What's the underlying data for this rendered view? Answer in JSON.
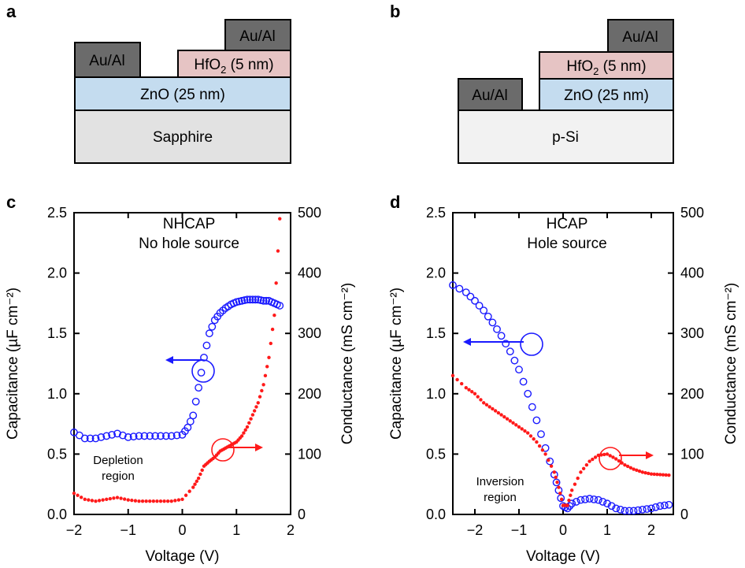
{
  "panels": {
    "a": {
      "letter": "a",
      "contact": "Au/Al",
      "contact2": "Au/Al",
      "dielectric": "HfO",
      "dielectric_sub": "2",
      "dielectric_rest": " (5 nm)",
      "channel": "ZnO (25 nm)",
      "substrate": "Sapphire"
    },
    "b": {
      "letter": "b",
      "contact": "Au/Al",
      "contact2": "Au/Al",
      "dielectric": "HfO",
      "dielectric_sub": "2",
      "dielectric_rest": " (5 nm)",
      "channel": "ZnO (25 nm)",
      "substrate": "p-Si"
    }
  },
  "colors": {
    "capacitance": "#1a1aff",
    "conductance": "#ff1a1a",
    "contact": "#6b6b6b",
    "hfo2": "#e6c4c4",
    "zno": "#c4dcef",
    "sapphire": "#e2e2e2",
    "psi": "#f2f2f2"
  },
  "chart_data": [
    {
      "panel": "c",
      "type": "scatter",
      "title": "NHCAP",
      "subtitle": "No hole source",
      "xlabel": "Voltage (V)",
      "ylabel": "Capacitance (µF cm⁻²)",
      "y2label": "Conductance (mS cm⁻²)",
      "xlim": [
        -2,
        2
      ],
      "ylim": [
        0,
        2.5
      ],
      "y2lim": [
        0,
        500
      ],
      "xticks": [
        "−2",
        "−1",
        "0",
        "1",
        "2"
      ],
      "yticks": [
        "0.0",
        "0.5",
        "1.0",
        "1.5",
        "2.0",
        "2.5"
      ],
      "y2ticks": [
        "0",
        "100",
        "200",
        "300",
        "400",
        "500"
      ],
      "annotation": [
        "Depletion",
        "region"
      ],
      "series": [
        {
          "name": "Capacitance",
          "axis": "left",
          "marker": "open-circle",
          "points": [
            [
              -2,
              0.68
            ],
            [
              -1.8,
              0.63
            ],
            [
              -1.6,
              0.63
            ],
            [
              -1.4,
              0.65
            ],
            [
              -1.2,
              0.67
            ],
            [
              -1.0,
              0.64
            ],
            [
              -0.8,
              0.65
            ],
            [
              -0.6,
              0.65
            ],
            [
              -0.4,
              0.65
            ],
            [
              -0.2,
              0.65
            ],
            [
              0,
              0.66
            ],
            [
              0.1,
              0.72
            ],
            [
              0.2,
              0.82
            ],
            [
              0.3,
              1.05
            ],
            [
              0.4,
              1.3
            ],
            [
              0.5,
              1.5
            ],
            [
              0.6,
              1.61
            ],
            [
              0.7,
              1.67
            ],
            [
              0.8,
              1.71
            ],
            [
              0.9,
              1.74
            ],
            [
              1.0,
              1.76
            ],
            [
              1.1,
              1.77
            ],
            [
              1.2,
              1.78
            ],
            [
              1.3,
              1.78
            ],
            [
              1.4,
              1.78
            ],
            [
              1.5,
              1.77
            ],
            [
              1.6,
              1.77
            ],
            [
              1.7,
              1.75
            ],
            [
              1.8,
              1.73
            ]
          ]
        },
        {
          "name": "Conductance",
          "axis": "right",
          "marker": "dot",
          "points": [
            [
              -2,
              35
            ],
            [
              -1.8,
              25
            ],
            [
              -1.6,
              22
            ],
            [
              -1.4,
              25
            ],
            [
              -1.2,
              28
            ],
            [
              -1.0,
              24
            ],
            [
              -0.8,
              22
            ],
            [
              -0.6,
              22
            ],
            [
              -0.4,
              22
            ],
            [
              -0.2,
              22
            ],
            [
              0,
              25
            ],
            [
              0.2,
              45
            ],
            [
              0.3,
              60
            ],
            [
              0.4,
              80
            ],
            [
              0.5,
              88
            ],
            [
              0.6,
              95
            ],
            [
              0.7,
              105
            ],
            [
              0.8,
              110
            ],
            [
              0.9,
              115
            ],
            [
              1.0,
              120
            ],
            [
              1.1,
              130
            ],
            [
              1.2,
              145
            ],
            [
              1.3,
              165
            ],
            [
              1.4,
              185
            ],
            [
              1.5,
              215
            ],
            [
              1.6,
              260
            ],
            [
              1.7,
              330
            ],
            [
              1.8,
              490
            ]
          ]
        }
      ]
    },
    {
      "panel": "d",
      "type": "scatter",
      "title": "HCAP",
      "subtitle": "Hole source",
      "xlabel": "Voltage (V)",
      "ylabel": "Capacitance (µF cm⁻²)",
      "y2label": "Conductance (mS cm⁻²)",
      "xlim": [
        -2.5,
        2.5
      ],
      "ylim": [
        0,
        2.5
      ],
      "y2lim": [
        0,
        500
      ],
      "xticks": [
        "−2",
        "−1",
        "0",
        "1",
        "2"
      ],
      "yticks": [
        "0.0",
        "0.5",
        "1.0",
        "1.5",
        "2.0",
        "2.5"
      ],
      "y2ticks": [
        "0",
        "100",
        "200",
        "300",
        "400",
        "500"
      ],
      "annotation": [
        "Inversion",
        "region"
      ],
      "series": [
        {
          "name": "Capacitance",
          "axis": "left",
          "marker": "open-circle",
          "points": [
            [
              -2.5,
              1.9
            ],
            [
              -2.2,
              1.84
            ],
            [
              -2.0,
              1.77
            ],
            [
              -1.8,
              1.69
            ],
            [
              -1.6,
              1.59
            ],
            [
              -1.4,
              1.48
            ],
            [
              -1.2,
              1.35
            ],
            [
              -1.0,
              1.2
            ],
            [
              -0.8,
              1.0
            ],
            [
              -0.6,
              0.78
            ],
            [
              -0.4,
              0.55
            ],
            [
              -0.2,
              0.33
            ],
            [
              -0.1,
              0.2
            ],
            [
              0,
              0.07
            ],
            [
              0.1,
              0.05
            ],
            [
              0.2,
              0.09
            ],
            [
              0.4,
              0.12
            ],
            [
              0.6,
              0.13
            ],
            [
              0.8,
              0.12
            ],
            [
              1.0,
              0.09
            ],
            [
              1.2,
              0.05
            ],
            [
              1.4,
              0.03
            ],
            [
              1.6,
              0.03
            ],
            [
              1.8,
              0.04
            ],
            [
              2.0,
              0.05
            ],
            [
              2.2,
              0.07
            ],
            [
              2.4,
              0.08
            ]
          ]
        },
        {
          "name": "Conductance",
          "axis": "right",
          "marker": "dot",
          "points": [
            [
              -2.5,
              230
            ],
            [
              -2.2,
              210
            ],
            [
              -2.0,
              200
            ],
            [
              -1.8,
              185
            ],
            [
              -1.6,
              175
            ],
            [
              -1.4,
              165
            ],
            [
              -1.2,
              155
            ],
            [
              -1.0,
              145
            ],
            [
              -0.8,
              135
            ],
            [
              -0.6,
              120
            ],
            [
              -0.4,
              100
            ],
            [
              -0.2,
              70
            ],
            [
              -0.1,
              45
            ],
            [
              0,
              15
            ],
            [
              0.1,
              15
            ],
            [
              0.2,
              40
            ],
            [
              0.4,
              70
            ],
            [
              0.6,
              88
            ],
            [
              0.8,
              98
            ],
            [
              1.0,
              100
            ],
            [
              1.2,
              92
            ],
            [
              1.4,
              82
            ],
            [
              1.6,
              75
            ],
            [
              1.8,
              70
            ],
            [
              2.0,
              67
            ],
            [
              2.2,
              66
            ],
            [
              2.4,
              65
            ]
          ]
        }
      ]
    }
  ]
}
